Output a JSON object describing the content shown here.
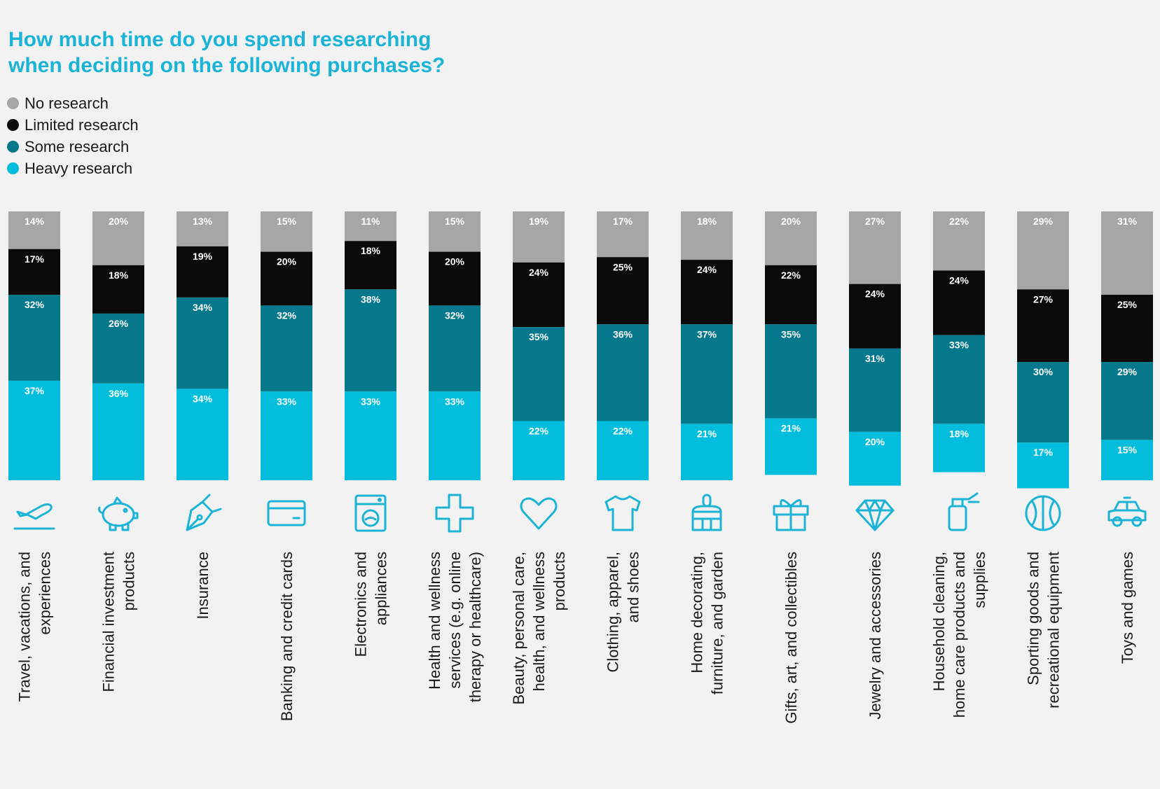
{
  "chart_data": {
    "type": "bar",
    "stacked": true,
    "title_lines": [
      "How much time do you spend researching",
      "when deciding on the following purchases?"
    ],
    "legend": [
      {
        "name": "No research",
        "color": "#a6a6a6"
      },
      {
        "name": "Limited research",
        "color": "#0a0a0a"
      },
      {
        "name": "Some research",
        "color": "#06788c"
      },
      {
        "name": "Heavy research",
        "color": "#02bedc"
      }
    ],
    "categories": [
      "Travel, vacations, and experiences",
      "Financial investment products",
      "Insurance",
      "Banking and credit cards",
      "Electronics and appliances",
      "Health and wellness services (e.g. online therapy or healthcare)",
      "Beauty, personal care, health, and wellness products",
      "Clothing, apparel, and shoes",
      "Home decorating, furniture, and garden",
      "Gifts, art, and collectibles",
      "Jewelry and accessories",
      "Household cleaning, home care products and supplies",
      "Sporting goods and recreational equipment",
      "Toys and games"
    ],
    "category_label_lines": [
      [
        "Travel, vacations, and",
        "experiences"
      ],
      [
        "Financial investment",
        "products"
      ],
      [
        "Insurance"
      ],
      [
        "Banking and credit cards"
      ],
      [
        "Electronics and",
        "appliances"
      ],
      [
        "Health and wellness",
        "services (e.g. online",
        "therapy or healthcare)"
      ],
      [
        "Beauty, personal care,",
        "health, and wellness",
        "products"
      ],
      [
        "Clothing, apparel,",
        "and shoes"
      ],
      [
        "Home decorating,",
        "furniture, and garden"
      ],
      [
        "Gifts, art, and collectibles"
      ],
      [
        "Jewelry and accessories"
      ],
      [
        "Household cleaning,",
        "home care products and",
        "supplies"
      ],
      [
        "Sporting goods and",
        "recreational equipment"
      ],
      [
        "Toys and games"
      ]
    ],
    "category_icons": [
      "airplane-icon",
      "piggy-bank-icon",
      "pen-icon",
      "credit-card-icon",
      "washing-machine-icon",
      "cross-icon",
      "heart-icon",
      "shirt-icon",
      "paint-brush-icon",
      "gift-icon",
      "diamond-icon",
      "spray-bottle-icon",
      "ball-icon",
      "car-icon"
    ],
    "series": [
      {
        "name": "No research",
        "color": "#a6a6a6",
        "values": [
          14,
          20,
          13,
          15,
          11,
          15,
          19,
          17,
          18,
          20,
          27,
          22,
          29,
          31
        ]
      },
      {
        "name": "Limited research",
        "color": "#0a0a0a",
        "values": [
          17,
          18,
          19,
          20,
          18,
          20,
          24,
          25,
          24,
          22,
          24,
          24,
          27,
          25
        ]
      },
      {
        "name": "Some research",
        "color": "#06788c",
        "values": [
          32,
          26,
          34,
          32,
          38,
          32,
          35,
          36,
          37,
          35,
          31,
          33,
          30,
          29
        ]
      },
      {
        "name": "Heavy research",
        "color": "#02bedc",
        "values": [
          37,
          36,
          34,
          33,
          33,
          33,
          22,
          22,
          21,
          21,
          20,
          18,
          17,
          15
        ]
      }
    ],
    "value_suffix": "%",
    "ylim": [
      0,
      100
    ],
    "grid": false,
    "legend_position": "top-left",
    "icon_color": "#1cb4d6"
  }
}
